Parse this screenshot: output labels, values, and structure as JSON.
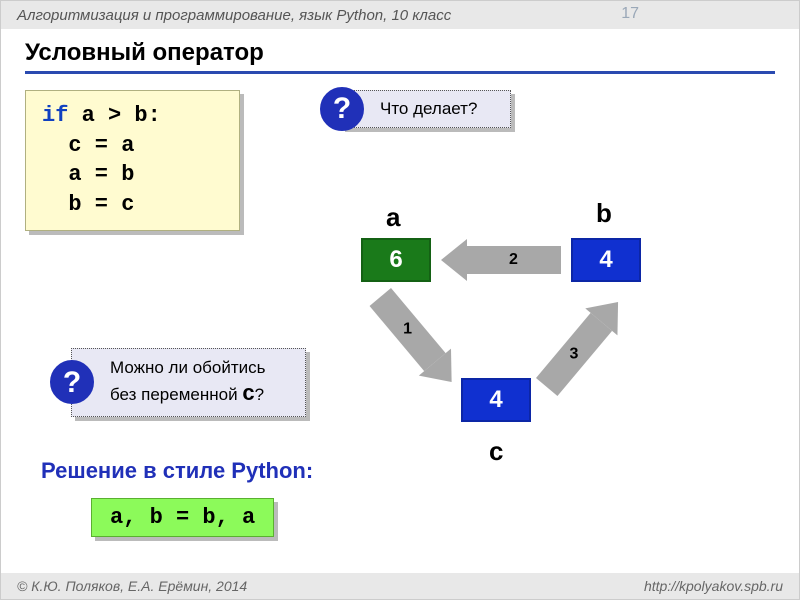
{
  "header": {
    "course": "Алгоритмизация и программирование, язык Python, 10 класс",
    "page_number": "17"
  },
  "title": "Условный оператор",
  "code": {
    "line1_kw": "if",
    "line1_rest": " a > b:",
    "line2": "  c = a",
    "line3": "  a = b",
    "line4": "  b = c",
    "bg_color": "#fffbd0",
    "keyword_color": "#1040c0",
    "font": "Courier New"
  },
  "callouts": {
    "q_symbol": "?",
    "q_bg": "#2030b8",
    "box_bg": "#e8e8f4",
    "c1_text": "Что делает?",
    "c2_line1": "Можно ли обойтись",
    "c2_line2_a": "без переменной ",
    "c2_line2_var": "с",
    "c2_line2_b": "?"
  },
  "solution": {
    "label": "Решение в стиле Python:",
    "label_color": "#2030b8",
    "code": "a, b = b, a",
    "bg_color": "#8cfa5a"
  },
  "diagram": {
    "nodes": {
      "a": {
        "label": "a",
        "value": "6",
        "color": "#1a7a1a"
      },
      "b": {
        "label": "b",
        "value": "4",
        "color": "#1030d0"
      },
      "c": {
        "label": "c",
        "value": "4",
        "color": "#1030d0"
      }
    },
    "arrows": {
      "a1": "1",
      "a2": "2",
      "a3": "3",
      "color": "#a8a8a8"
    }
  },
  "footer": {
    "left": "К.Ю. Поляков, Е.А. Ерёмин, 2014",
    "right": "http://kpolyakov.spb.ru"
  }
}
